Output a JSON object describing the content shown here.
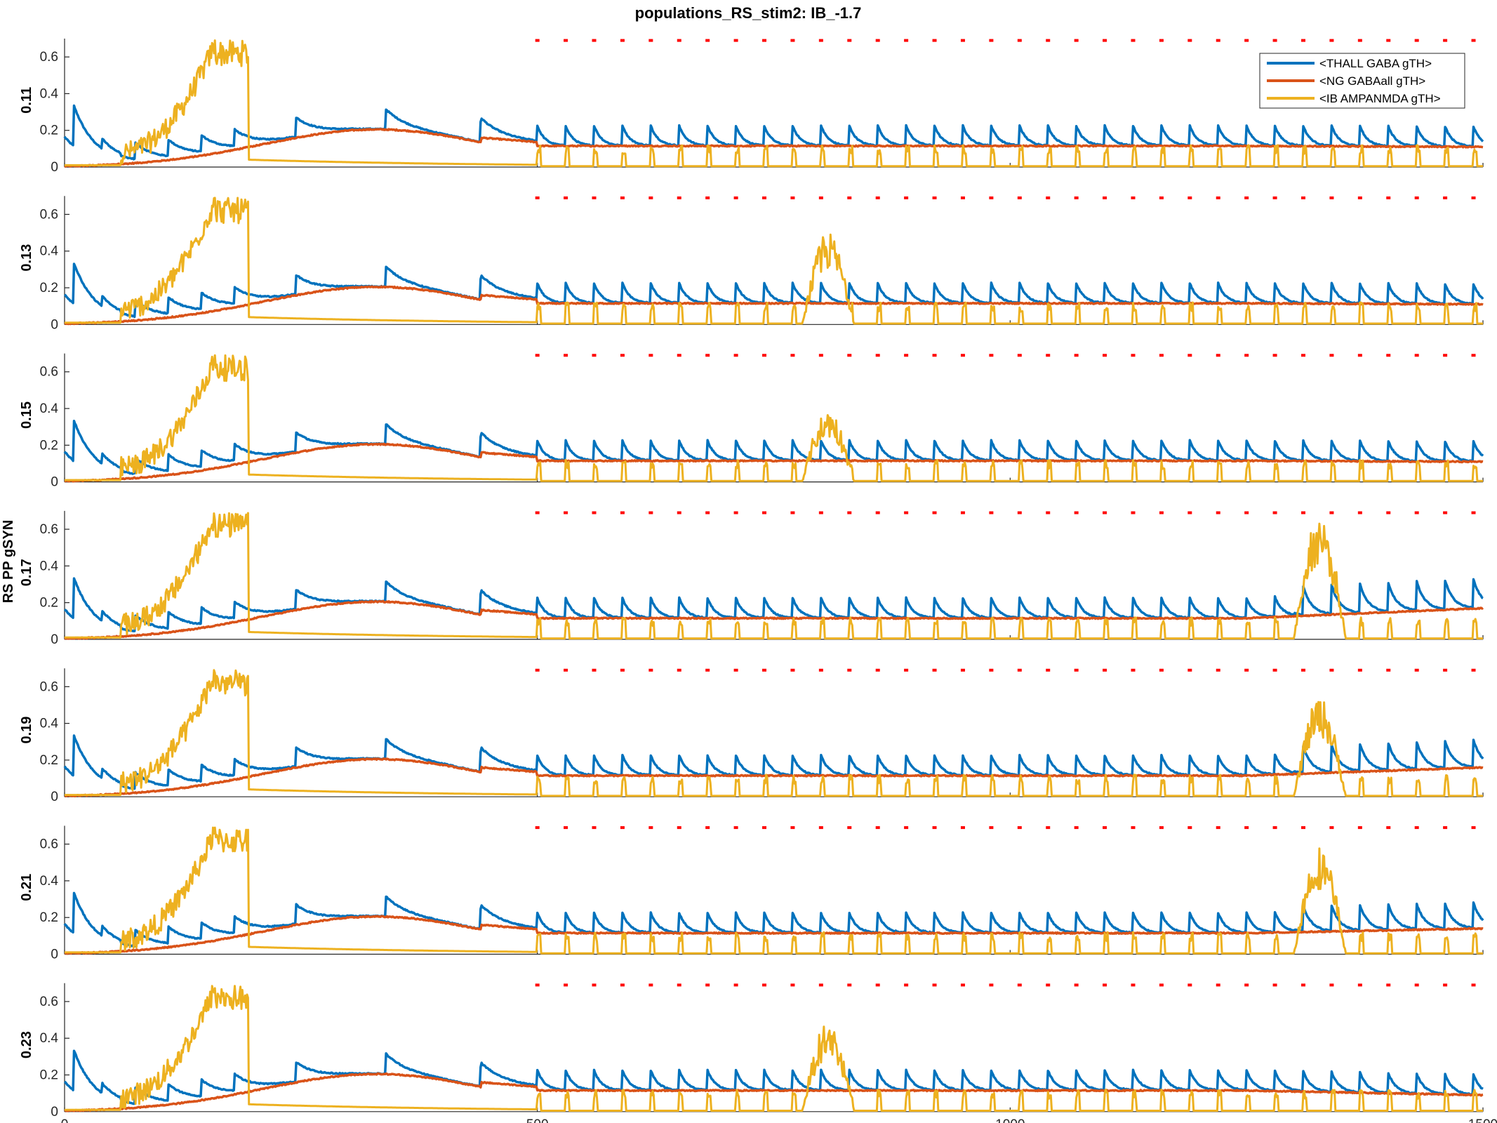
{
  "chart_data": {
    "type": "line",
    "title": "populations_RS_stim2: IB_-1.7",
    "ylabel": "RS PP gSYN",
    "xlim": [
      0,
      1500
    ],
    "ylim": [
      0,
      0.7
    ],
    "x_ticks": [
      "0",
      "500",
      "1000",
      "1500"
    ],
    "y_ticks": [
      "0",
      "0.2",
      "0.4",
      "0.6"
    ],
    "colors": {
      "thall": "#0072BD",
      "ng": "#D95319",
      "ib": "#EDB120",
      "markers": "#FF0000"
    },
    "legend": {
      "position": "top-right",
      "entries": [
        "<THALL GABA gTH>",
        "<NG GABAall gTH>",
        "<IB AMPANMDA gTH>"
      ]
    },
    "panels": [
      {
        "label": "0.11",
        "burst_time": null,
        "burst_peak": null,
        "marker_times": [
          500,
          530,
          560,
          590,
          620,
          650,
          680,
          710,
          740,
          770,
          800,
          830,
          860,
          890,
          920,
          950,
          980,
          1010,
          1040,
          1070,
          1100,
          1130,
          1160,
          1190,
          1220,
          1250,
          1280,
          1310,
          1340,
          1370,
          1400,
          1430,
          1460,
          1490
        ],
        "end": {
          "thall": 0.12,
          "ng": 0.11
        }
      },
      {
        "label": "0.13",
        "burst_time": 780,
        "burst_peak": 0.5,
        "marker_times": [
          500,
          530,
          560,
          590,
          620,
          650,
          680,
          710,
          740,
          770,
          800,
          830,
          860,
          890,
          920,
          950,
          980,
          1010,
          1040,
          1070,
          1100,
          1130,
          1160,
          1190,
          1220,
          1250,
          1280,
          1310,
          1340,
          1370,
          1400,
          1430,
          1460,
          1490
        ],
        "end": {
          "thall": 0.11,
          "ng": 0.11
        }
      },
      {
        "label": "0.15",
        "burst_time": 780,
        "burst_peak": 0.4,
        "marker_times": [
          500,
          530,
          560,
          590,
          620,
          650,
          680,
          710,
          740,
          770,
          800,
          830,
          860,
          890,
          920,
          950,
          980,
          1010,
          1040,
          1070,
          1100,
          1130,
          1160,
          1190,
          1220,
          1250,
          1280,
          1310,
          1340,
          1370,
          1400,
          1430,
          1460,
          1490
        ],
        "end": {
          "thall": 0.12,
          "ng": 0.11
        }
      },
      {
        "label": "0.17",
        "burst_time": 1300,
        "burst_peak": 0.68,
        "marker_times": [
          500,
          530,
          560,
          590,
          620,
          650,
          680,
          710,
          740,
          770,
          800,
          830,
          860,
          890,
          920,
          950,
          980,
          1010,
          1040,
          1070,
          1100,
          1130,
          1160,
          1190,
          1220,
          1250,
          1280,
          1310,
          1340,
          1370,
          1400,
          1430,
          1460,
          1490
        ],
        "end": {
          "thall": 0.26,
          "ng": 0.17
        }
      },
      {
        "label": "0.19",
        "burst_time": 1300,
        "burst_peak": 0.54,
        "marker_times": [
          500,
          530,
          560,
          590,
          620,
          650,
          680,
          710,
          740,
          770,
          800,
          830,
          860,
          890,
          920,
          950,
          980,
          1010,
          1040,
          1070,
          1100,
          1130,
          1160,
          1190,
          1220,
          1250,
          1280,
          1310,
          1340,
          1370,
          1400,
          1430,
          1460,
          1490
        ],
        "end": {
          "thall": 0.25,
          "ng": 0.16
        }
      },
      {
        "label": "0.21",
        "burst_time": 1300,
        "burst_peak": 0.59,
        "marker_times": [
          500,
          530,
          560,
          590,
          620,
          650,
          680,
          710,
          740,
          770,
          800,
          830,
          860,
          890,
          920,
          950,
          980,
          1010,
          1040,
          1070,
          1100,
          1130,
          1160,
          1190,
          1220,
          1250,
          1280,
          1310,
          1340,
          1370,
          1400,
          1430,
          1460,
          1490
        ],
        "end": {
          "thall": 0.24,
          "ng": 0.14
        }
      },
      {
        "label": "0.23",
        "burst_time": 780,
        "burst_peak": 0.49,
        "marker_times": [
          500,
          530,
          560,
          590,
          620,
          650,
          680,
          710,
          740,
          770,
          800,
          830,
          860,
          890,
          920,
          950,
          980,
          1010,
          1040,
          1070,
          1100,
          1130,
          1160,
          1190,
          1220,
          1250,
          1280,
          1310,
          1340,
          1370,
          1400,
          1430,
          1460,
          1490
        ],
        "end": {
          "thall": 0.1,
          "ng": 0.09
        }
      }
    ]
  }
}
